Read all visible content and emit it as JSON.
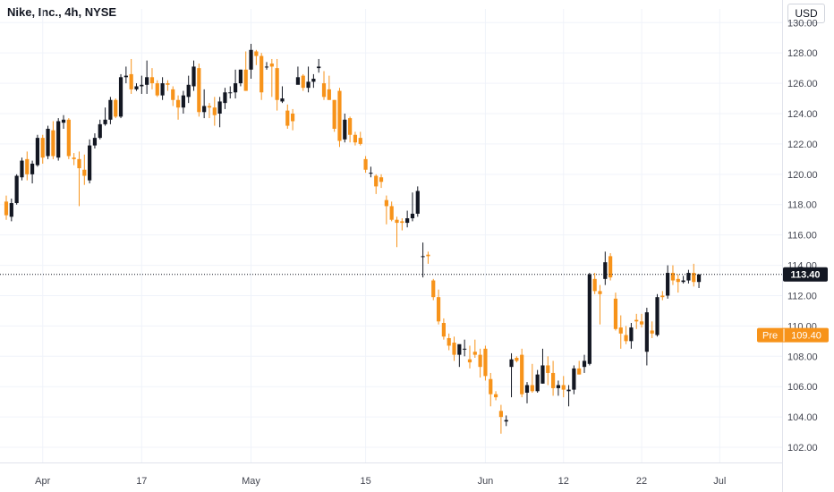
{
  "header": {
    "title": "Nike, Inc., 4h, NYSE",
    "currency": "USD"
  },
  "colors": {
    "up": "#131722",
    "down": "#f7931a",
    "grid": "#f0f3fa",
    "text": "#131722",
    "axis_line": "#e0e3eb"
  },
  "chart_data": {
    "type": "candlestick",
    "title": "Nike, Inc., 4h, NYSE",
    "ylim": [
      101.0,
      131.0
    ],
    "yticks": [
      102,
      104,
      106,
      108,
      110,
      112,
      114,
      116,
      118,
      120,
      122,
      124,
      126,
      128,
      130
    ],
    "ytick_labels": [
      "102.00",
      "104.00",
      "106.00",
      "108.00",
      "110.00",
      "112.00",
      "114.00",
      "116.00",
      "118.00",
      "120.00",
      "122.00",
      "124.00",
      "126.00",
      "128.00",
      "130.00"
    ],
    "xaxis_labels": [
      {
        "label": "Apr",
        "index": 7
      },
      {
        "label": "17",
        "index": 26
      },
      {
        "label": "May",
        "index": 47
      },
      {
        "label": "15",
        "index": 69
      },
      {
        "label": "Jun",
        "index": 92
      },
      {
        "label": "12",
        "index": 107
      },
      {
        "label": "22",
        "index": 122
      },
      {
        "label": "Jul",
        "index": 137
      }
    ],
    "grid": true,
    "last_price": {
      "value": 113.4,
      "label": "113.40"
    },
    "premarket": {
      "tag": "Pre",
      "value": 109.4,
      "label": "109.40"
    },
    "candles": [
      [
        118.2,
        118.6,
        117.0,
        117.3
      ],
      [
        117.2,
        118.4,
        116.9,
        118.1
      ],
      [
        118.1,
        120.0,
        118.0,
        119.9
      ],
      [
        119.8,
        121.1,
        119.6,
        120.9
      ],
      [
        121.0,
        121.5,
        119.6,
        120.0
      ],
      [
        120.0,
        120.9,
        119.4,
        120.7
      ],
      [
        120.6,
        122.6,
        120.5,
        122.4
      ],
      [
        122.4,
        122.6,
        120.7,
        121.1
      ],
      [
        121.2,
        123.2,
        121.0,
        123.0
      ],
      [
        122.9,
        123.5,
        121.0,
        121.2
      ],
      [
        121.1,
        123.7,
        120.9,
        123.5
      ],
      [
        123.4,
        123.9,
        123.0,
        123.6
      ],
      [
        123.6,
        123.7,
        121.0,
        121.2
      ],
      [
        121.1,
        121.4,
        120.6,
        121.0
      ],
      [
        121.0,
        121.5,
        117.9,
        120.4
      ],
      [
        120.3,
        121.3,
        119.3,
        119.9
      ],
      [
        119.6,
        122.3,
        119.4,
        121.9
      ],
      [
        121.9,
        122.7,
        121.7,
        122.4
      ],
      [
        122.4,
        123.6,
        122.3,
        123.3
      ],
      [
        123.3,
        124.4,
        123.2,
        123.6
      ],
      [
        123.6,
        125.1,
        123.3,
        124.9
      ],
      [
        124.9,
        125.0,
        123.7,
        123.8
      ],
      [
        123.8,
        126.6,
        123.7,
        126.4
      ],
      [
        126.4,
        127.1,
        126.0,
        126.5
      ],
      [
        126.6,
        127.6,
        125.3,
        125.6
      ],
      [
        125.6,
        126.0,
        125.5,
        125.8
      ],
      [
        125.8,
        126.5,
        125.3,
        125.9
      ],
      [
        125.9,
        127.5,
        125.3,
        126.4
      ],
      [
        126.4,
        127.0,
        125.6,
        126.0
      ],
      [
        126.0,
        126.2,
        125.1,
        125.2
      ],
      [
        125.2,
        126.4,
        124.9,
        126.0
      ],
      [
        126.0,
        126.2,
        125.5,
        125.9
      ],
      [
        125.6,
        125.8,
        124.5,
        124.9
      ],
      [
        124.9,
        125.2,
        123.6,
        124.4
      ],
      [
        124.4,
        125.5,
        124.0,
        125.2
      ],
      [
        125.1,
        126.5,
        124.7,
        125.9
      ],
      [
        125.8,
        127.5,
        125.5,
        127.1
      ],
      [
        127.0,
        127.3,
        123.8,
        124.1
      ],
      [
        124.1,
        125.6,
        123.7,
        124.5
      ],
      [
        124.5,
        124.7,
        123.7,
        124.4
      ],
      [
        124.4,
        125.1,
        123.2,
        123.9
      ],
      [
        124.0,
        125.1,
        123.1,
        124.8
      ],
      [
        124.7,
        125.7,
        124.3,
        125.4
      ],
      [
        125.4,
        125.8,
        125.0,
        125.4
      ],
      [
        125.4,
        126.9,
        125.0,
        126.0
      ],
      [
        126.0,
        126.9,
        125.8,
        126.9
      ],
      [
        126.9,
        128.1,
        125.5,
        125.5
      ],
      [
        126.9,
        128.6,
        126.3,
        128.2
      ],
      [
        128.1,
        128.2,
        127.2,
        127.8
      ],
      [
        127.8,
        128.0,
        124.9,
        125.4
      ],
      [
        127.1,
        127.4,
        126.9,
        127.1
      ],
      [
        127.3,
        127.6,
        125.1,
        127.1
      ],
      [
        127.0,
        127.6,
        124.2,
        124.9
      ],
      [
        124.8,
        125.8,
        124.7,
        125.0
      ],
      [
        124.2,
        124.6,
        123.0,
        123.2
      ],
      [
        124.0,
        124.3,
        122.9,
        123.5
      ],
      [
        125.9,
        127.1,
        126.1,
        126.4
      ],
      [
        126.5,
        126.6,
        125.5,
        125.7
      ],
      [
        125.7,
        127.1,
        125.4,
        126.1
      ],
      [
        126.1,
        126.6,
        125.7,
        126.3
      ],
      [
        127.0,
        127.6,
        126.7,
        127.1
      ],
      [
        126.0,
        126.8,
        124.9,
        125.1
      ],
      [
        125.6,
        126.5,
        124.9,
        124.9
      ],
      [
        124.9,
        124.9,
        122.8,
        123.0
      ],
      [
        125.5,
        125.7,
        121.8,
        122.2
      ],
      [
        122.3,
        124.0,
        122.1,
        123.6
      ],
      [
        123.7,
        123.8,
        122.1,
        122.6
      ],
      [
        122.6,
        122.8,
        121.9,
        122.1
      ],
      [
        122.4,
        122.8,
        121.9,
        122.0
      ],
      [
        121.0,
        121.2,
        120.1,
        120.3
      ],
      [
        120.1,
        120.5,
        119.8,
        120.1
      ],
      [
        119.9,
        120.0,
        118.7,
        119.2
      ],
      [
        119.8,
        120.0,
        119.1,
        119.5
      ],
      [
        118.3,
        118.6,
        116.7,
        117.9
      ],
      [
        117.9,
        118.2,
        116.9,
        117.0
      ],
      [
        117.0,
        117.2,
        115.2,
        116.8
      ],
      [
        116.9,
        117.1,
        116.3,
        116.8
      ],
      [
        116.8,
        117.6,
        116.5,
        117.1
      ],
      [
        117.1,
        118.8,
        116.9,
        117.4
      ],
      [
        117.4,
        119.2,
        117.2,
        118.9
      ],
      [
        114.6,
        115.5,
        113.2,
        114.6
      ],
      [
        114.7,
        114.9,
        114.1,
        114.6
      ],
      [
        113.0,
        113.1,
        111.7,
        111.9
      ],
      [
        111.9,
        112.4,
        110.1,
        110.3
      ],
      [
        110.2,
        110.5,
        109.1,
        109.3
      ],
      [
        109.2,
        109.5,
        108.4,
        108.7
      ],
      [
        108.9,
        109.3,
        107.7,
        108.1
      ],
      [
        108.1,
        108.5,
        107.3,
        108.8
      ],
      [
        108.5,
        109.1,
        108.0,
        108.5
      ],
      [
        107.8,
        108.7,
        107.2,
        107.6
      ],
      [
        108.3,
        109.1,
        107.9,
        108.1
      ],
      [
        108.1,
        108.5,
        106.6,
        107.3
      ],
      [
        108.5,
        108.7,
        106.4,
        106.7
      ],
      [
        106.5,
        106.9,
        104.7,
        105.5
      ],
      [
        105.5,
        105.7,
        105.1,
        105.3
      ],
      [
        104.4,
        104.8,
        102.9,
        104.0
      ],
      [
        103.7,
        104.1,
        103.4,
        103.8
      ],
      [
        107.3,
        108.2,
        105.3,
        107.8
      ],
      [
        107.9,
        108.0,
        107.6,
        107.7
      ],
      [
        108.1,
        108.5,
        105.3,
        105.5
      ],
      [
        105.6,
        106.3,
        104.9,
        106.1
      ],
      [
        106.1,
        107.5,
        105.6,
        105.7
      ],
      [
        105.7,
        107.1,
        105.6,
        106.8
      ],
      [
        106.2,
        108.5,
        106.2,
        107.4
      ],
      [
        107.4,
        108.0,
        106.1,
        106.9
      ],
      [
        106.9,
        107.7,
        105.4,
        105.9
      ],
      [
        105.9,
        106.4,
        105.4,
        106.1
      ],
      [
        106.1,
        106.7,
        105.3,
        105.8
      ],
      [
        105.7,
        106.1,
        104.7,
        105.8
      ],
      [
        105.8,
        107.4,
        105.5,
        107.2
      ],
      [
        107.2,
        107.7,
        106.8,
        106.8
      ],
      [
        107.3,
        108.1,
        106.9,
        107.7
      ],
      [
        107.5,
        113.5,
        107.4,
        113.4
      ],
      [
        113.1,
        113.5,
        112.1,
        112.3
      ],
      [
        112.3,
        112.7,
        110.1,
        112.1
      ],
      [
        113.1,
        114.9,
        112.7,
        114.2
      ],
      [
        114.6,
        114.8,
        113.0,
        113.2
      ],
      [
        111.8,
        112.2,
        109.7,
        109.8
      ],
      [
        109.9,
        110.7,
        108.5,
        109.5
      ],
      [
        109.4,
        110.0,
        108.8,
        109.0
      ],
      [
        109.0,
        110.2,
        108.5,
        109.9
      ],
      [
        110.4,
        110.8,
        109.8,
        110.3
      ],
      [
        110.3,
        110.8,
        109.9,
        110.1
      ],
      [
        108.3,
        111.2,
        107.4,
        110.9
      ],
      [
        109.7,
        110.3,
        109.2,
        109.5
      ],
      [
        109.4,
        112.1,
        109.3,
        111.9
      ],
      [
        112.0,
        112.3,
        111.7,
        111.9
      ],
      [
        112.0,
        114.0,
        111.8,
        113.5
      ],
      [
        113.5,
        114.0,
        112.7,
        113.0
      ],
      [
        113.1,
        113.4,
        112.2,
        112.9
      ],
      [
        112.9,
        113.3,
        112.8,
        113.0
      ],
      [
        113.0,
        113.7,
        112.8,
        113.5
      ],
      [
        113.5,
        114.1,
        112.6,
        112.9
      ],
      [
        112.9,
        113.4,
        112.5,
        113.4
      ]
    ]
  }
}
